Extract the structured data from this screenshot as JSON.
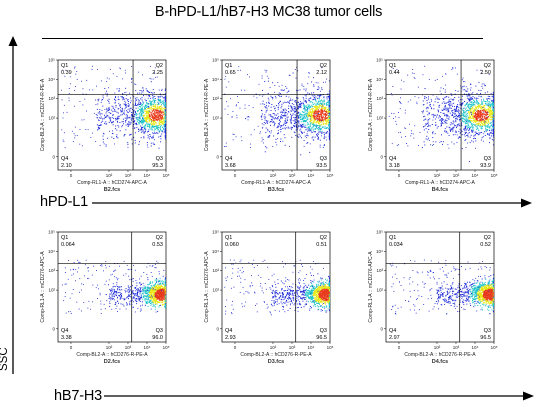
{
  "title": "B-hPD-L1/hB7-H3 MC38 tumor cells",
  "row_labels": {
    "top": "hPD-L1",
    "bottom": "hB7-H3",
    "vertical": "SSC"
  },
  "colors": {
    "density_low": "#1e2bd6",
    "density_mid": "#1fc4c8",
    "density_high": "#e8e817",
    "density_peak": "#e83a1c",
    "gate_line": "#000000"
  },
  "chart_data": [
    {
      "type": "scatter",
      "title": "",
      "sample": "B2.fcs",
      "xlabel": "Comp-RL1-A :: hCD274-APC-A",
      "ylabel": "Comp-BL2-A :: mCD274-R-PE-A",
      "xlim": [
        0,
        100000
      ],
      "ylim": [
        0,
        100000
      ],
      "x_ticks": [
        "0",
        "10²",
        "10³",
        "10⁴",
        "10⁵"
      ],
      "y_ticks": [
        "0",
        "10²",
        "10³",
        "10⁴",
        "10⁵"
      ],
      "quadrants": {
        "Q1": {
          "label": "Q1",
          "value": "0.39"
        },
        "Q2": {
          "label": "Q2",
          "value": "2.25"
        },
        "Q3": {
          "label": "Q3",
          "value": "95.3"
        },
        "Q4": {
          "label": "Q4",
          "value": "2.10"
        }
      },
      "population_center": {
        "x": 30000,
        "y": 150
      }
    },
    {
      "type": "scatter",
      "title": "",
      "sample": "B3.fcs",
      "xlabel": "Comp-RL1-A :: hCD274-APC-A",
      "ylabel": "Comp-BL2-A :: mCD274-R-PE-A",
      "xlim": [
        0,
        100000
      ],
      "ylim": [
        0,
        100000
      ],
      "x_ticks": [
        "0",
        "10²",
        "10³",
        "10⁴",
        "10⁵"
      ],
      "y_ticks": [
        "0",
        "10²",
        "10³",
        "10⁴",
        "10⁵"
      ],
      "quadrants": {
        "Q1": {
          "label": "Q1",
          "value": "0.65"
        },
        "Q2": {
          "label": "Q2",
          "value": "2.12"
        },
        "Q3": {
          "label": "Q3",
          "value": "93.5"
        },
        "Q4": {
          "label": "Q4",
          "value": "3.68"
        }
      },
      "population_center": {
        "x": 30000,
        "y": 150
      }
    },
    {
      "type": "scatter",
      "title": "",
      "sample": "B4.fcs",
      "xlabel": "Comp-RL1-A :: hCD274-APC-A",
      "ylabel": "Comp-BL2-A :: mCD274-R-PE-A",
      "xlim": [
        0,
        100000
      ],
      "ylim": [
        0,
        100000
      ],
      "x_ticks": [
        "0",
        "10²",
        "10³",
        "10⁴",
        "10⁵"
      ],
      "y_ticks": [
        "0",
        "10²",
        "10³",
        "10⁴",
        "10⁵"
      ],
      "quadrants": {
        "Q1": {
          "label": "Q1",
          "value": "0.44"
        },
        "Q2": {
          "label": "Q2",
          "value": "2.50"
        },
        "Q3": {
          "label": "Q3",
          "value": "93.9"
        },
        "Q4": {
          "label": "Q4",
          "value": "3.18"
        }
      },
      "population_center": {
        "x": 20000,
        "y": 150
      }
    },
    {
      "type": "scatter",
      "title": "",
      "sample": "D2.fcs",
      "xlabel": "Comp-BL2-A :: hCD276-R-PE-A",
      "ylabel": "Comp-RL1-A :: mCD276-APC-A",
      "xlim": [
        0,
        100000
      ],
      "ylim": [
        0,
        100000
      ],
      "x_ticks": [
        "0",
        "10²",
        "10³",
        "10⁴",
        "10⁵"
      ],
      "y_ticks": [
        "0",
        "10²",
        "10³",
        "10⁴",
        "10⁵"
      ],
      "quadrants": {
        "Q1": {
          "label": "Q1",
          "value": "0.064"
        },
        "Q2": {
          "label": "Q2",
          "value": "0.53"
        },
        "Q3": {
          "label": "Q3",
          "value": "96.0"
        },
        "Q4": {
          "label": "Q4",
          "value": "3.38"
        }
      },
      "population_center": {
        "x": 60000,
        "y": 60
      }
    },
    {
      "type": "scatter",
      "title": "",
      "sample": "D3.fcs",
      "xlabel": "Comp-BL2-A :: hCD276-R-PE-A",
      "ylabel": "Comp-RL1-A :: mCD276-APC-A",
      "xlim": [
        0,
        100000
      ],
      "ylim": [
        0,
        100000
      ],
      "x_ticks": [
        "0",
        "10²",
        "10³",
        "10⁴",
        "10⁵"
      ],
      "y_ticks": [
        "0",
        "10²",
        "10³",
        "10⁴",
        "10⁵"
      ],
      "quadrants": {
        "Q1": {
          "label": "Q1",
          "value": "0.060"
        },
        "Q2": {
          "label": "Q2",
          "value": "0.51"
        },
        "Q3": {
          "label": "Q3",
          "value": "96.5"
        },
        "Q4": {
          "label": "Q4",
          "value": "2.93"
        }
      },
      "population_center": {
        "x": 60000,
        "y": 60
      }
    },
    {
      "type": "scatter",
      "title": "",
      "sample": "D4.fcs",
      "xlabel": "Comp-BL2-A :: hCD276-R-PE-A",
      "ylabel": "Comp-RL1-A :: mCD276-APC-A",
      "xlim": [
        0,
        100000
      ],
      "ylim": [
        0,
        100000
      ],
      "x_ticks": [
        "0",
        "10²",
        "10³",
        "10⁴",
        "10⁵"
      ],
      "y_ticks": [
        "0",
        "10²",
        "10³",
        "10⁴",
        "10⁵"
      ],
      "quadrants": {
        "Q1": {
          "label": "Q1",
          "value": "0.034"
        },
        "Q2": {
          "label": "Q2",
          "value": "0.52"
        },
        "Q3": {
          "label": "Q3",
          "value": "96.5"
        },
        "Q4": {
          "label": "Q4",
          "value": "2.97"
        }
      },
      "population_center": {
        "x": 60000,
        "y": 60
      }
    }
  ]
}
